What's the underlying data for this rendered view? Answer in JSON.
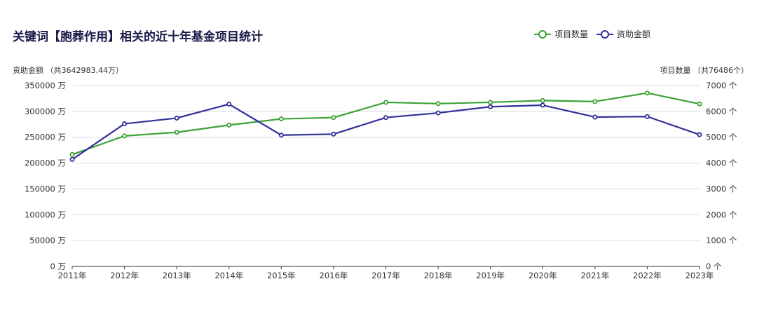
{
  "title": "关键词【胞葬作用】相关的近十年基金项目统计",
  "legend": {
    "count_label": "项目数量",
    "amount_label": "资助金额"
  },
  "axes": {
    "left_title": "资助金额 （共3642983.44万）",
    "right_title": "项目数量 （共76486个）",
    "left_unit": "万",
    "right_unit": "个"
  },
  "colors": {
    "count": "#3aa336",
    "amount": "#33309a",
    "grid": "#d8dbe8",
    "axis": "#333333"
  },
  "chart_data": {
    "type": "line",
    "title": "关键词【胞葬作用】相关的近十年基金项目统计",
    "categories": [
      "2011年",
      "2012年",
      "2013年",
      "2014年",
      "2015年",
      "2016年",
      "2017年",
      "2018年",
      "2019年",
      "2020年",
      "2021年",
      "2022年",
      "2023年"
    ],
    "series": [
      {
        "name": "项目数量",
        "axis": "right",
        "values": [
          4330,
          5050,
          5190,
          5470,
          5710,
          5760,
          6350,
          6300,
          6350,
          6420,
          6380,
          6710,
          6290
        ]
      },
      {
        "name": "资助金额",
        "axis": "left",
        "values": [
          207000,
          276000,
          287000,
          314000,
          254000,
          256000,
          288000,
          297000,
          309000,
          312000,
          289000,
          290000,
          255000
        ]
      }
    ],
    "y_left": {
      "label": "资助金额",
      "range": [
        0,
        350000
      ],
      "ticks": [
        0,
        50000,
        100000,
        150000,
        200000,
        250000,
        300000,
        350000
      ]
    },
    "y_right": {
      "label": "项目数量",
      "range": [
        0,
        7000
      ],
      "ticks": [
        0,
        1000,
        2000,
        3000,
        4000,
        5000,
        6000,
        7000
      ]
    },
    "grid": true,
    "legend_position": "top-right"
  }
}
